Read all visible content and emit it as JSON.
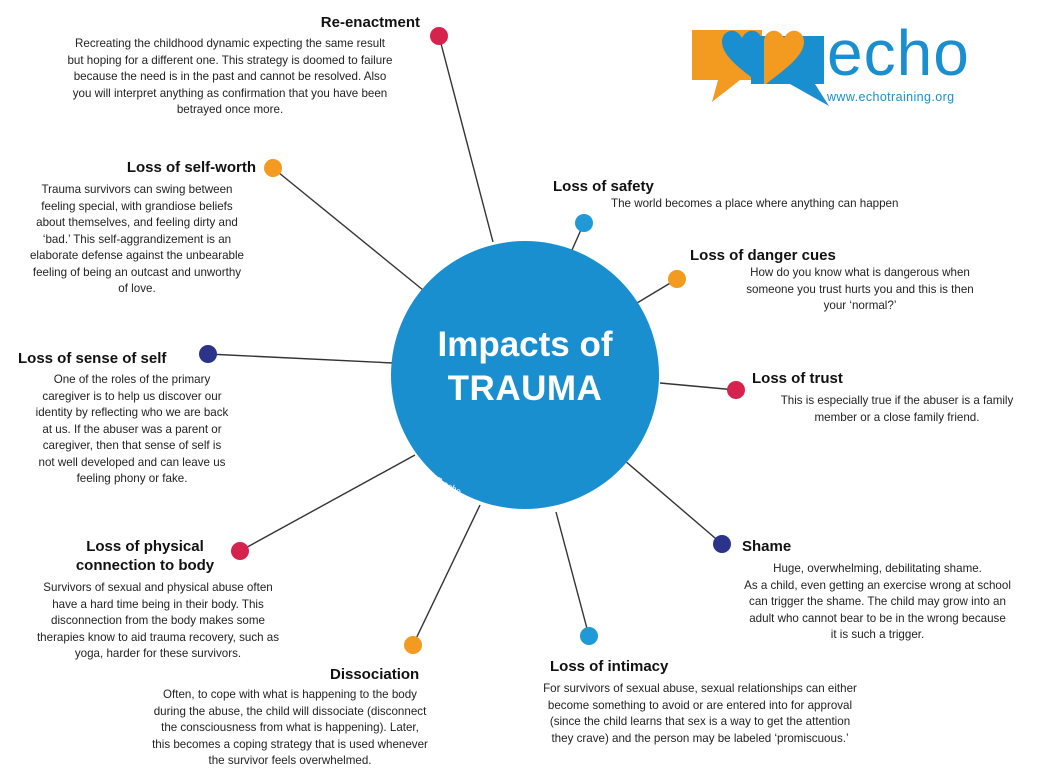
{
  "center": {
    "title_line1": "Impacts of",
    "title_line2": "TRAUMA",
    "copyright": "©2017 echo"
  },
  "logo": {
    "name": "echo",
    "url": "www.echotraining.org"
  },
  "colors": {
    "circle": "#1a8fd0",
    "red": "#d6234e",
    "orange": "#f39a21",
    "navy": "#2b338a",
    "blue": "#1f9ad6",
    "logo_orange": "#f39a21",
    "logo_blue": "#1a8fd0"
  },
  "nodes": {
    "reenactment": {
      "title": "Re-enactment",
      "desc": [
        "Recreating the childhood dynamic expecting the same result",
        "but hoping for a different one. This strategy is doomed to failure",
        "because the need is in the past and cannot be resolved. Also",
        "you will interpret anything as confirmation that you have been",
        "betrayed once more."
      ]
    },
    "self_worth": {
      "title": "Loss of self-worth",
      "desc": [
        "Trauma survivors can swing between",
        "feeling special, with grandiose beliefs",
        "about themselves, and feeling dirty and",
        "‘bad.’ This self-aggrandizement is an",
        "elaborate defense against the unbearable",
        "feeling of being an outcast and unworthy",
        "of love."
      ]
    },
    "sense_of_self": {
      "title": "Loss of sense of self",
      "desc": [
        "One of the roles of the primary",
        "caregiver is to help us discover our",
        "identity by reflecting who we are back",
        "at us. If the abuser was a parent or",
        "caregiver, then that sense of self is",
        "not well developed and can leave us",
        "feeling phony or fake."
      ]
    },
    "physical": {
      "title_line1": "Loss of physical",
      "title_line2": "connection to body",
      "desc": [
        "Survivors of sexual and physical abuse often",
        "have a hard time being in their body.  This",
        "disconnection from the body makes some",
        "therapies know to aid trauma recovery, such as",
        "yoga, harder for these survivors."
      ]
    },
    "dissociation": {
      "title": "Dissociation",
      "desc": [
        "Often, to cope with what is happening to the body",
        "during the abuse, the child will dissociate (disconnect",
        "the consciousness from what is happening). Later,",
        "this becomes a coping strategy that is used whenever",
        "the survivor feels overwhelmed."
      ]
    },
    "intimacy": {
      "title": "Loss of intimacy",
      "desc": [
        "For survivors of sexual abuse, sexual relationships can either",
        "become something to avoid or are entered into for approval",
        "(since the child learns that sex is a way to get the attention",
        "they crave) and the person may be labeled ‘promiscuous.’"
      ]
    },
    "shame": {
      "title": "Shame",
      "desc": [
        "Huge, overwhelming, debilitating shame.",
        "As a child, even getting an exercise wrong at school",
        "can trigger the shame. The child may grow into an",
        "adult who cannot bear to be in the wrong because",
        "it is such a trigger."
      ]
    },
    "trust": {
      "title": "Loss of trust",
      "desc": [
        "This is especially true if the abuser is a family",
        "member or a close family friend."
      ]
    },
    "danger_cues": {
      "title": "Loss of danger cues",
      "desc": [
        "How do you know what is dangerous when",
        "someone you trust hurts you and this is then",
        "your ‘normal?’"
      ]
    },
    "safety": {
      "title": "Loss of safety",
      "desc": [
        "The world becomes a place where anything can happen"
      ]
    }
  }
}
